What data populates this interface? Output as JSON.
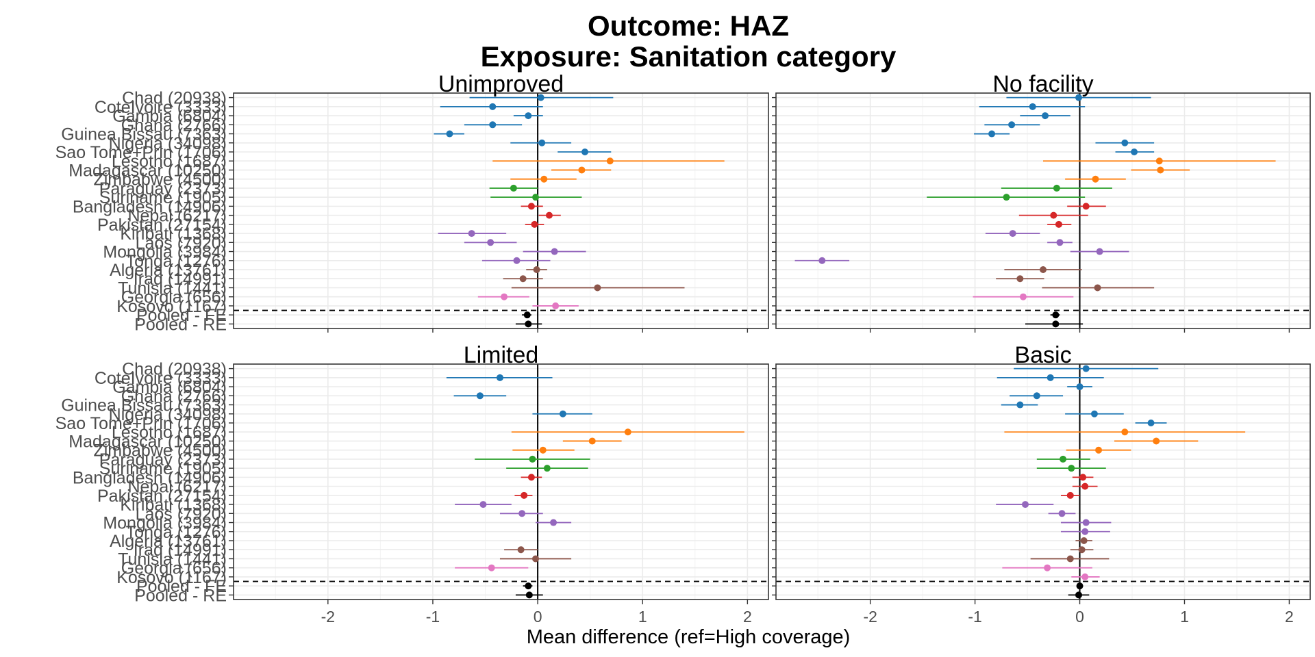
{
  "chart_data": {
    "type": "forest",
    "title_lines": [
      "Outcome: HAZ",
      "Exposure: Sanitation category"
    ],
    "xlabel": "Mean difference (ref=High coverage)",
    "xlim": [
      -2.9,
      2.2
    ],
    "xticks": [
      -2,
      -1,
      0,
      1,
      2
    ],
    "xtick_labels": [
      "-2",
      "-1",
      "0",
      "1",
      "2"
    ],
    "grid": true,
    "pooled_separator": "dashed",
    "rows": [
      {
        "label": "Chad (20938)",
        "color": "#1f77b4"
      },
      {
        "label": "CoteIvoire (3333)",
        "color": "#1f77b4"
      },
      {
        "label": "Gambia (6804)",
        "color": "#1f77b4"
      },
      {
        "label": "Ghana (2766)",
        "color": "#1f77b4"
      },
      {
        "label": "Guinea Bissau (7363)",
        "color": "#1f77b4"
      },
      {
        "label": "Nigeria (34098)",
        "color": "#1f77b4"
      },
      {
        "label": "Sao Tome+Prin (1706)",
        "color": "#1f77b4"
      },
      {
        "label": "Lesotho (1687)",
        "color": "#ff7f0e"
      },
      {
        "label": "Madagascar (10250)",
        "color": "#ff7f0e"
      },
      {
        "label": "Zimbabwe (4500)",
        "color": "#ff7f0e"
      },
      {
        "label": "Paraguay (2373)",
        "color": "#2ca02c"
      },
      {
        "label": "Suriname (1905)",
        "color": "#2ca02c"
      },
      {
        "label": "Bangladesh (14906)",
        "color": "#d62728"
      },
      {
        "label": "Nepal (6217)",
        "color": "#d62728"
      },
      {
        "label": "Pakistan (27154)",
        "color": "#d62728"
      },
      {
        "label": "Kiribati (1368)",
        "color": "#9467bd"
      },
      {
        "label": "Laos (7920)",
        "color": "#9467bd"
      },
      {
        "label": "Mongolia (3984)",
        "color": "#9467bd"
      },
      {
        "label": "Tonga (1276)",
        "color": "#9467bd"
      },
      {
        "label": "Algeria (13761)",
        "color": "#8c564b"
      },
      {
        "label": "Iraq (14991)",
        "color": "#8c564b"
      },
      {
        "label": "Tunisia (1441)",
        "color": "#8c564b"
      },
      {
        "label": "Georgia (656)",
        "color": "#e377c2"
      },
      {
        "label": "Kosovo (1167)",
        "color": "#e377c2"
      },
      {
        "label": "Pooled - FE",
        "color": "#000000"
      },
      {
        "label": "Pooled - RE",
        "color": "#000000"
      }
    ],
    "panels": [
      {
        "name": "Unimproved",
        "estimates": [
          {
            "est": 0.03,
            "lo": -0.65,
            "hi": 0.72
          },
          {
            "est": -0.43,
            "lo": -0.93,
            "hi": 0.05
          },
          {
            "est": -0.09,
            "lo": -0.23,
            "hi": 0.05
          },
          {
            "est": -0.43,
            "lo": -0.7,
            "hi": -0.15
          },
          {
            "est": -0.84,
            "lo": -0.99,
            "hi": -0.7
          },
          {
            "est": 0.04,
            "lo": -0.26,
            "hi": 0.32
          },
          {
            "est": 0.45,
            "lo": 0.19,
            "hi": 0.7
          },
          {
            "est": 0.69,
            "lo": -0.43,
            "hi": 1.78
          },
          {
            "est": 0.42,
            "lo": 0.13,
            "hi": 0.7
          },
          {
            "est": 0.06,
            "lo": -0.26,
            "hi": 0.37
          },
          {
            "est": -0.23,
            "lo": -0.46,
            "hi": 0.0
          },
          {
            "est": -0.02,
            "lo": -0.45,
            "hi": 0.42
          },
          {
            "est": -0.06,
            "lo": -0.16,
            "hi": 0.05
          },
          {
            "est": 0.11,
            "lo": 0.01,
            "hi": 0.22
          },
          {
            "est": -0.03,
            "lo": -0.12,
            "hi": 0.06
          },
          {
            "est": -0.63,
            "lo": -0.95,
            "hi": -0.3
          },
          {
            "est": -0.45,
            "lo": -0.7,
            "hi": -0.2
          },
          {
            "est": 0.16,
            "lo": -0.14,
            "hi": 0.46
          },
          {
            "est": -0.2,
            "lo": -0.53,
            "hi": 0.12
          },
          {
            "est": -0.01,
            "lo": -0.11,
            "hi": 0.09
          },
          {
            "est": -0.14,
            "lo": -0.33,
            "hi": 0.05
          },
          {
            "est": 0.57,
            "lo": -0.25,
            "hi": 1.4
          },
          {
            "est": -0.32,
            "lo": -0.57,
            "hi": -0.08
          },
          {
            "est": 0.17,
            "lo": -0.05,
            "hi": 0.39
          },
          {
            "est": -0.1,
            "lo": -0.15,
            "hi": -0.06
          },
          {
            "est": -0.09,
            "lo": -0.21,
            "hi": 0.04
          }
        ]
      },
      {
        "name": "No facility",
        "estimates": [
          {
            "est": -0.01,
            "lo": -0.7,
            "hi": 0.68
          },
          {
            "est": -0.45,
            "lo": -0.96,
            "hi": 0.05
          },
          {
            "est": -0.33,
            "lo": -0.57,
            "hi": -0.09
          },
          {
            "est": -0.65,
            "lo": -0.91,
            "hi": -0.38
          },
          {
            "est": -0.84,
            "lo": -1.01,
            "hi": -0.67
          },
          {
            "est": 0.43,
            "lo": 0.15,
            "hi": 0.71
          },
          {
            "est": 0.52,
            "lo": 0.34,
            "hi": 0.71
          },
          {
            "est": 0.76,
            "lo": -0.35,
            "hi": 1.87
          },
          {
            "est": 0.77,
            "lo": 0.49,
            "hi": 1.05
          },
          {
            "est": 0.15,
            "lo": -0.14,
            "hi": 0.44
          },
          {
            "est": -0.22,
            "lo": -0.75,
            "hi": 0.31
          },
          {
            "est": -0.7,
            "lo": -1.46,
            "hi": 0.05
          },
          {
            "est": 0.06,
            "lo": -0.12,
            "hi": 0.25
          },
          {
            "est": -0.25,
            "lo": -0.58,
            "hi": 0.08
          },
          {
            "est": -0.2,
            "lo": -0.31,
            "hi": -0.08
          },
          {
            "est": -0.64,
            "lo": -0.9,
            "hi": -0.38
          },
          {
            "est": -0.19,
            "lo": -0.31,
            "hi": -0.07
          },
          {
            "est": 0.19,
            "lo": -0.09,
            "hi": 0.47
          },
          {
            "est": -2.46,
            "lo": -2.72,
            "hi": -2.2
          },
          {
            "est": -0.35,
            "lo": -0.72,
            "hi": 0.02
          },
          {
            "est": -0.57,
            "lo": -0.8,
            "hi": -0.34
          },
          {
            "est": 0.17,
            "lo": -0.36,
            "hi": 0.71
          },
          {
            "est": -0.54,
            "lo": -1.02,
            "hi": -0.06
          },
          null,
          {
            "est": -0.23,
            "lo": -0.28,
            "hi": -0.19
          },
          {
            "est": -0.23,
            "lo": -0.52,
            "hi": 0.03
          }
        ]
      },
      {
        "name": "Limited",
        "estimates": [
          null,
          {
            "est": -0.36,
            "lo": -0.87,
            "hi": 0.14
          },
          null,
          {
            "est": -0.55,
            "lo": -0.8,
            "hi": -0.3
          },
          null,
          {
            "est": 0.24,
            "lo": -0.05,
            "hi": 0.52
          },
          null,
          {
            "est": 0.86,
            "lo": -0.25,
            "hi": 1.97
          },
          {
            "est": 0.52,
            "lo": 0.24,
            "hi": 0.8
          },
          {
            "est": 0.05,
            "lo": -0.24,
            "hi": 0.35
          },
          {
            "est": -0.05,
            "lo": -0.6,
            "hi": 0.5
          },
          {
            "est": 0.09,
            "lo": -0.3,
            "hi": 0.48
          },
          {
            "est": -0.06,
            "lo": -0.16,
            "hi": 0.04
          },
          null,
          {
            "est": -0.13,
            "lo": -0.22,
            "hi": -0.05
          },
          {
            "est": -0.52,
            "lo": -0.79,
            "hi": -0.25
          },
          {
            "est": -0.15,
            "lo": -0.36,
            "hi": 0.05
          },
          {
            "est": 0.15,
            "lo": -0.02,
            "hi": 0.32
          },
          null,
          null,
          {
            "est": -0.16,
            "lo": -0.32,
            "hi": 0.0
          },
          {
            "est": -0.02,
            "lo": -0.36,
            "hi": 0.32
          },
          {
            "est": -0.44,
            "lo": -0.79,
            "hi": -0.09
          },
          null,
          {
            "est": -0.09,
            "lo": -0.14,
            "hi": -0.05
          },
          {
            "est": -0.08,
            "lo": -0.21,
            "hi": 0.05
          }
        ]
      },
      {
        "name": "Basic",
        "estimates": [
          {
            "est": 0.06,
            "lo": -0.63,
            "hi": 0.75
          },
          {
            "est": -0.28,
            "lo": -0.79,
            "hi": 0.23
          },
          {
            "est": 0.0,
            "lo": -0.12,
            "hi": 0.12
          },
          {
            "est": -0.41,
            "lo": -0.67,
            "hi": -0.16
          },
          {
            "est": -0.57,
            "lo": -0.75,
            "hi": -0.4
          },
          {
            "est": 0.14,
            "lo": -0.14,
            "hi": 0.42
          },
          {
            "est": 0.68,
            "lo": 0.53,
            "hi": 0.83
          },
          {
            "est": 0.43,
            "lo": -0.72,
            "hi": 1.58
          },
          {
            "est": 0.73,
            "lo": 0.33,
            "hi": 1.13
          },
          {
            "est": 0.18,
            "lo": -0.13,
            "hi": 0.49
          },
          {
            "est": -0.16,
            "lo": -0.41,
            "hi": 0.1
          },
          {
            "est": -0.08,
            "lo": -0.41,
            "hi": 0.25
          },
          {
            "est": 0.03,
            "lo": -0.07,
            "hi": 0.13
          },
          {
            "est": 0.05,
            "lo": -0.07,
            "hi": 0.17
          },
          {
            "est": -0.09,
            "lo": -0.18,
            "hi": 0.0
          },
          {
            "est": -0.52,
            "lo": -0.8,
            "hi": -0.25
          },
          {
            "est": -0.17,
            "lo": -0.3,
            "hi": -0.04
          },
          {
            "est": 0.06,
            "lo": -0.18,
            "hi": 0.3
          },
          {
            "est": 0.05,
            "lo": -0.18,
            "hi": 0.29
          },
          {
            "est": 0.04,
            "lo": -0.04,
            "hi": 0.12
          },
          {
            "est": 0.02,
            "lo": -0.09,
            "hi": 0.13
          },
          {
            "est": -0.09,
            "lo": -0.47,
            "hi": 0.28
          },
          {
            "est": -0.31,
            "lo": -0.74,
            "hi": 0.12
          },
          {
            "est": 0.05,
            "lo": -0.08,
            "hi": 0.19
          },
          {
            "est": 0.0,
            "lo": -0.03,
            "hi": 0.03
          },
          {
            "est": -0.01,
            "lo": -0.11,
            "hi": 0.09
          }
        ]
      }
    ]
  }
}
